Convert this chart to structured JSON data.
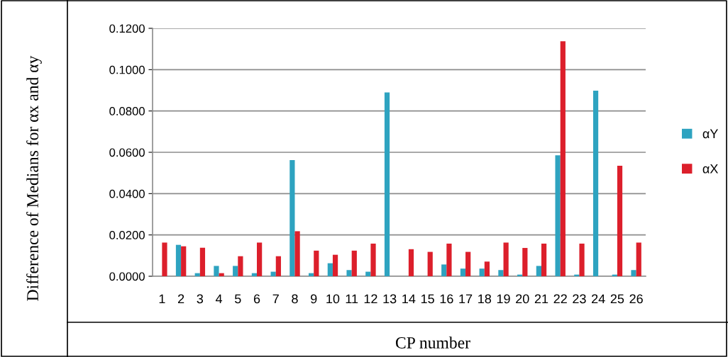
{
  "chart_data": {
    "type": "bar",
    "xlabel": "CP number",
    "ylabel": "Difference of Medians for αx and αy",
    "categories": [
      "1",
      "2",
      "3",
      "4",
      "5",
      "6",
      "7",
      "8",
      "9",
      "10",
      "11",
      "12",
      "13",
      "14",
      "15",
      "16",
      "17",
      "18",
      "19",
      "20",
      "21",
      "22",
      "23",
      "24",
      "25",
      "26"
    ],
    "series": [
      {
        "name": "αY",
        "color": "#2ea3c0",
        "values": [
          0,
          0.0152,
          0.0015,
          0.005,
          0.005,
          0.0015,
          0.0022,
          0.0562,
          0.0015,
          0.0063,
          0.003,
          0.0022,
          0.089,
          0,
          0,
          0.0057,
          0.0037,
          0.0037,
          0.003,
          0.0008,
          0.005,
          0.0585,
          0.0008,
          0.0898,
          0.0008,
          0.003
        ]
      },
      {
        "name": "αX",
        "color": "#dc1f2b",
        "values": [
          0.0163,
          0.0145,
          0.0138,
          0.0015,
          0.0097,
          0.0163,
          0.0097,
          0.0218,
          0.0124,
          0.0104,
          0.0124,
          0.0158,
          0,
          0.0131,
          0.0118,
          0.0158,
          0.0118,
          0.0071,
          0.0163,
          0.0137,
          0.0158,
          0.1137,
          0.0158,
          0,
          0.0535,
          0.0163
        ]
      }
    ],
    "ylim": [
      0,
      0.12
    ],
    "yticks": [
      {
        "value": 0,
        "label": "0.0000"
      },
      {
        "value": 0.02,
        "label": "0.0200"
      },
      {
        "value": 0.04,
        "label": "0.0400"
      },
      {
        "value": 0.06,
        "label": "0.0600"
      },
      {
        "value": 0.08,
        "label": "0.0800"
      },
      {
        "value": 0.1,
        "label": "0.1000"
      },
      {
        "value": 0.12,
        "label": "0.1200"
      }
    ],
    "grid": "y",
    "legend": "right"
  }
}
